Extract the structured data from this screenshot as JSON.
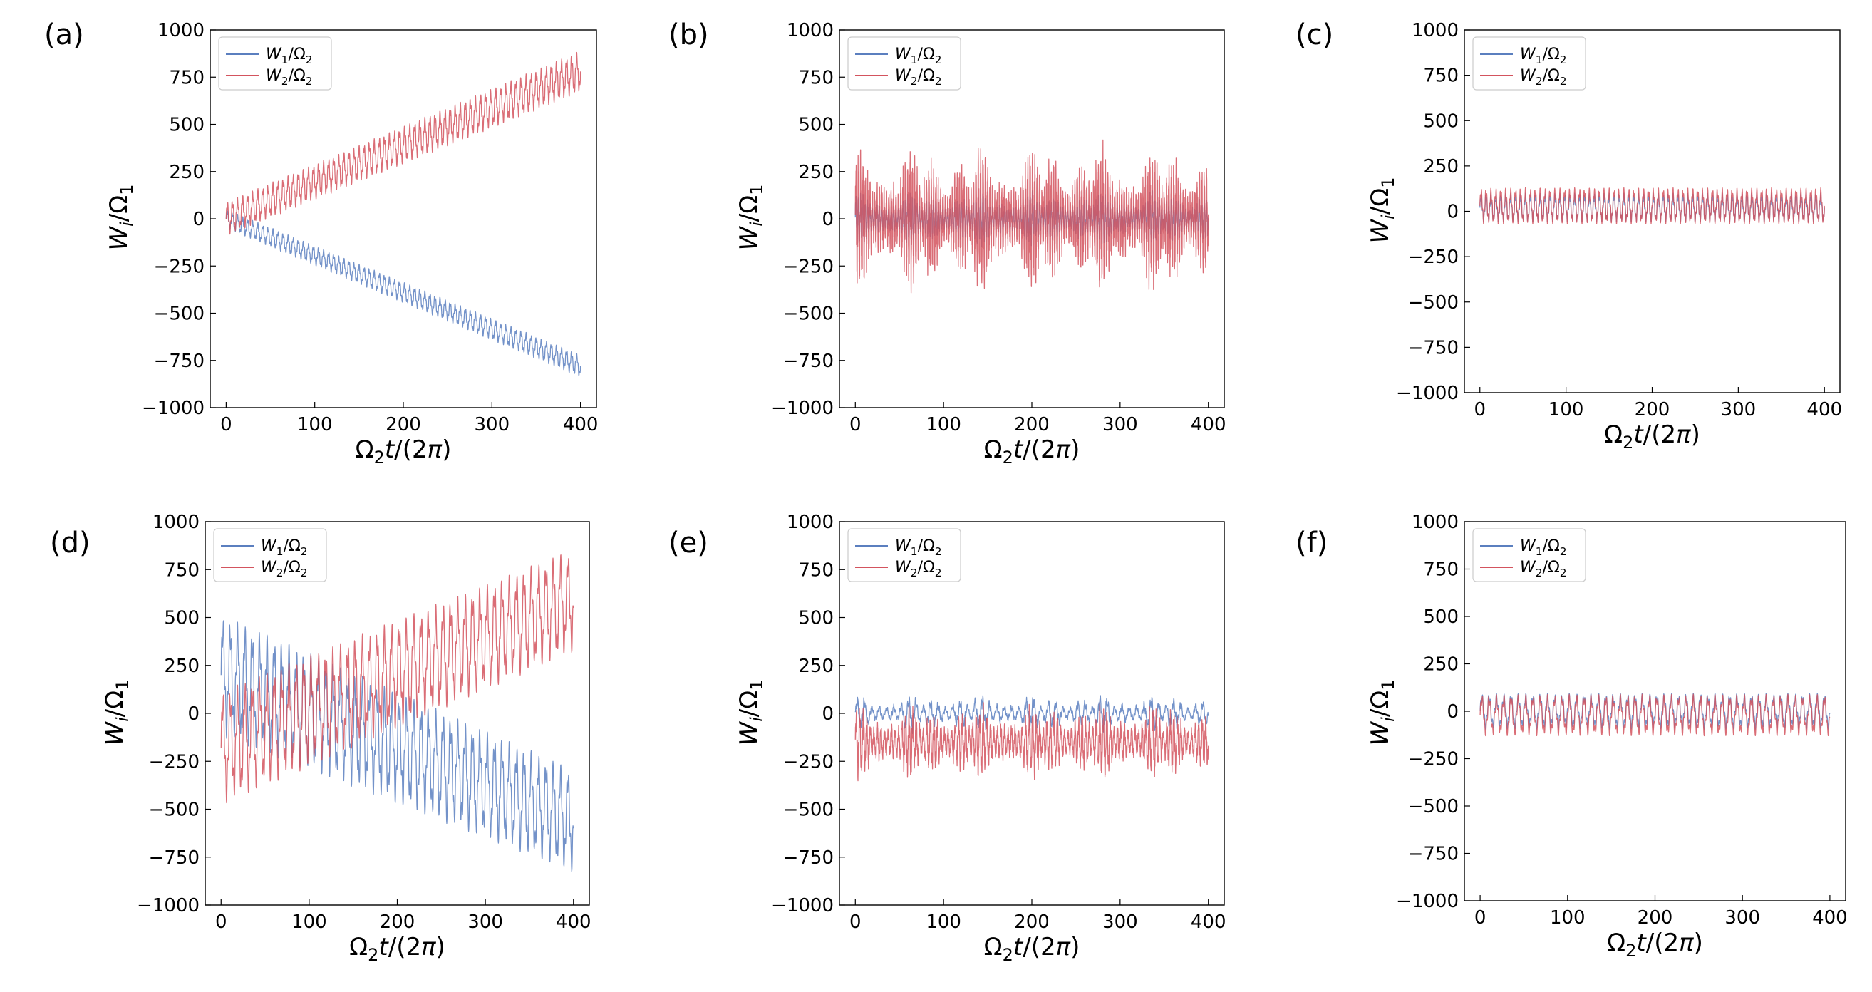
{
  "figure": {
    "colors": {
      "w1": "#5b7fbf",
      "w2": "#d3545e"
    }
  },
  "chart_data": [
    {
      "panel": "(a)",
      "type": "line",
      "xlabel": "Ω₂t/(2π)",
      "ylabel": "Wᵢ/Ω₁",
      "xlim": [
        0,
        400
      ],
      "ylim": [
        -1000,
        1000
      ],
      "xticks": [
        "0",
        "100",
        "200",
        "300",
        "400"
      ],
      "yticks": [
        "1000",
        "750",
        "500",
        "250",
        "0",
        "−250",
        "−500",
        "−750",
        "−1000"
      ],
      "legend_position": "top-left",
      "series": [
        {
          "name": "W₁/Ω₂",
          "legend_text": [
            "W",
            "1",
            "/Ω",
            "2"
          ],
          "color": "#5b7fbf",
          "x": [
            0,
            400
          ],
          "center": [
            0,
            -780
          ],
          "amplitude": [
            50,
            60
          ],
          "cycles": 70
        },
        {
          "name": "W₂/Ω₂",
          "legend_text": [
            "W",
            "2",
            "/Ω",
            "2"
          ],
          "color": "#d3545e",
          "x": [
            0,
            400
          ],
          "center": [
            0,
            780
          ],
          "amplitude": [
            90,
            110
          ],
          "cycles": 70
        }
      ]
    },
    {
      "panel": "(b)",
      "type": "line",
      "xlabel": "Ω₂t/(2π)",
      "ylabel": "Wᵢ/Ω₁",
      "xlim": [
        0,
        400
      ],
      "ylim": [
        -1000,
        1000
      ],
      "xticks": [
        "0",
        "100",
        "200",
        "300",
        "400"
      ],
      "yticks": [
        "1000",
        "750",
        "500",
        "250",
        "0",
        "−250",
        "−500",
        "−750",
        "−1000"
      ],
      "legend_position": "top-left",
      "series": [
        {
          "name": "W₁/Ω₂",
          "legend_text": [
            "W",
            "1",
            "/Ω",
            "2"
          ],
          "color": "#5b7fbf",
          "x": [
            0,
            400
          ],
          "center": [
            0,
            0
          ],
          "amplitude": [
            130,
            130
          ],
          "cycles": 150,
          "irregular": true
        },
        {
          "name": "W₂/Ω₂",
          "legend_text": [
            "W",
            "2",
            "/Ω",
            "2"
          ],
          "color": "#d3545e",
          "x": [
            0,
            400
          ],
          "center": [
            0,
            0
          ],
          "amplitude": [
            350,
            350
          ],
          "cycles": 150,
          "irregular": true
        }
      ]
    },
    {
      "panel": "(c)",
      "type": "line",
      "xlabel": "Ω₂t/(2π)",
      "ylabel": "Wᵢ/Ω₁",
      "xlim": [
        0,
        400
      ],
      "ylim": [
        -1000,
        1000
      ],
      "xticks": [
        "0",
        "100",
        "200",
        "300",
        "400"
      ],
      "yticks": [
        "1000",
        "750",
        "500",
        "250",
        "0",
        "−250",
        "−500",
        "−750",
        "−1000"
      ],
      "legend_position": "top-left",
      "series": [
        {
          "name": "W₁/Ω₂",
          "legend_text": [
            "W",
            "1",
            "/Ω",
            "2"
          ],
          "color": "#5b7fbf",
          "x": [
            0,
            400
          ],
          "center": [
            20,
            20
          ],
          "amplitude": [
            80,
            80
          ],
          "cycles": 70
        },
        {
          "name": "W₂/Ω₂",
          "legend_text": [
            "W",
            "2",
            "/Ω",
            "2"
          ],
          "color": "#d3545e",
          "x": [
            0,
            400
          ],
          "center": [
            30,
            30
          ],
          "amplitude": [
            100,
            100
          ],
          "cycles": 70
        }
      ]
    },
    {
      "panel": "(d)",
      "type": "line",
      "xlabel": "Ω₂t/(2π)",
      "ylabel": "Wᵢ/Ω₁",
      "xlim": [
        0,
        400
      ],
      "ylim": [
        -1000,
        1000
      ],
      "xticks": [
        "0",
        "100",
        "200",
        "300",
        "400"
      ],
      "yticks": [
        "1000",
        "750",
        "500",
        "250",
        "0",
        "−250",
        "−500",
        "−750",
        "−1000"
      ],
      "legend_position": "top-left",
      "series": [
        {
          "name": "W₁/Ω₂",
          "legend_text": [
            "W",
            "1",
            "/Ω",
            "2"
          ],
          "color": "#5b7fbf",
          "x": [
            0,
            400
          ],
          "center": [
            200,
            -560
          ],
          "amplitude": [
            320,
            270
          ],
          "cycles": 48
        },
        {
          "name": "W₂/Ω₂",
          "legend_text": [
            "W",
            "2",
            "/Ω",
            "2"
          ],
          "color": "#d3545e",
          "x": [
            0,
            400
          ],
          "center": [
            -180,
            590
          ],
          "amplitude": [
            300,
            270
          ],
          "cycles": 48
        }
      ]
    },
    {
      "panel": "(e)",
      "type": "line",
      "xlabel": "Ω₂t/(2π)",
      "ylabel": "Wᵢ/Ω₁",
      "xlim": [
        0,
        400
      ],
      "ylim": [
        -1000,
        1000
      ],
      "xticks": [
        "0",
        "100",
        "200",
        "300",
        "400"
      ],
      "yticks": [
        "1000",
        "750",
        "500",
        "250",
        "0",
        "−250",
        "−500",
        "−750",
        "−1000"
      ],
      "legend_position": "top-left",
      "series": [
        {
          "name": "W₁/Ω₂",
          "legend_text": [
            "W",
            "1",
            "/Ω",
            "2"
          ],
          "color": "#5b7fbf",
          "x": [
            0,
            400
          ],
          "center": [
            0,
            0
          ],
          "amplitude": [
            90,
            90
          ],
          "cycles": 48,
          "irregular": true
        },
        {
          "name": "W₂/Ω₂",
          "legend_text": [
            "W",
            "2",
            "/Ω",
            "2"
          ],
          "color": "#d3545e",
          "x": [
            0,
            400
          ],
          "center": [
            -150,
            -150
          ],
          "amplitude": [
            180,
            180
          ],
          "cycles": 100,
          "irregular": true
        }
      ]
    },
    {
      "panel": "(f)",
      "type": "line",
      "xlabel": "Ω₂t/(2π)",
      "ylabel": "Wᵢ/Ω₁",
      "xlim": [
        0,
        400
      ],
      "ylim": [
        -1000,
        1000
      ],
      "xticks": [
        "0",
        "100",
        "200",
        "300",
        "400"
      ],
      "yticks": [
        "1000",
        "750",
        "500",
        "250",
        "0",
        "−250",
        "−500",
        "−750",
        "−1000"
      ],
      "legend_position": "top-left",
      "series": [
        {
          "name": "W₁/Ω₂",
          "legend_text": [
            "W",
            "1",
            "/Ω",
            "2"
          ],
          "color": "#5b7fbf",
          "x": [
            0,
            400
          ],
          "center": [
            0,
            0
          ],
          "amplitude": [
            95,
            95
          ],
          "cycles": 48
        },
        {
          "name": "W₂/Ω₂",
          "legend_text": [
            "W",
            "2",
            "/Ω",
            "2"
          ],
          "color": "#d3545e",
          "x": [
            0,
            400
          ],
          "center": [
            -20,
            -20
          ],
          "amplitude": [
            110,
            110
          ],
          "cycles": 48
        }
      ]
    }
  ]
}
